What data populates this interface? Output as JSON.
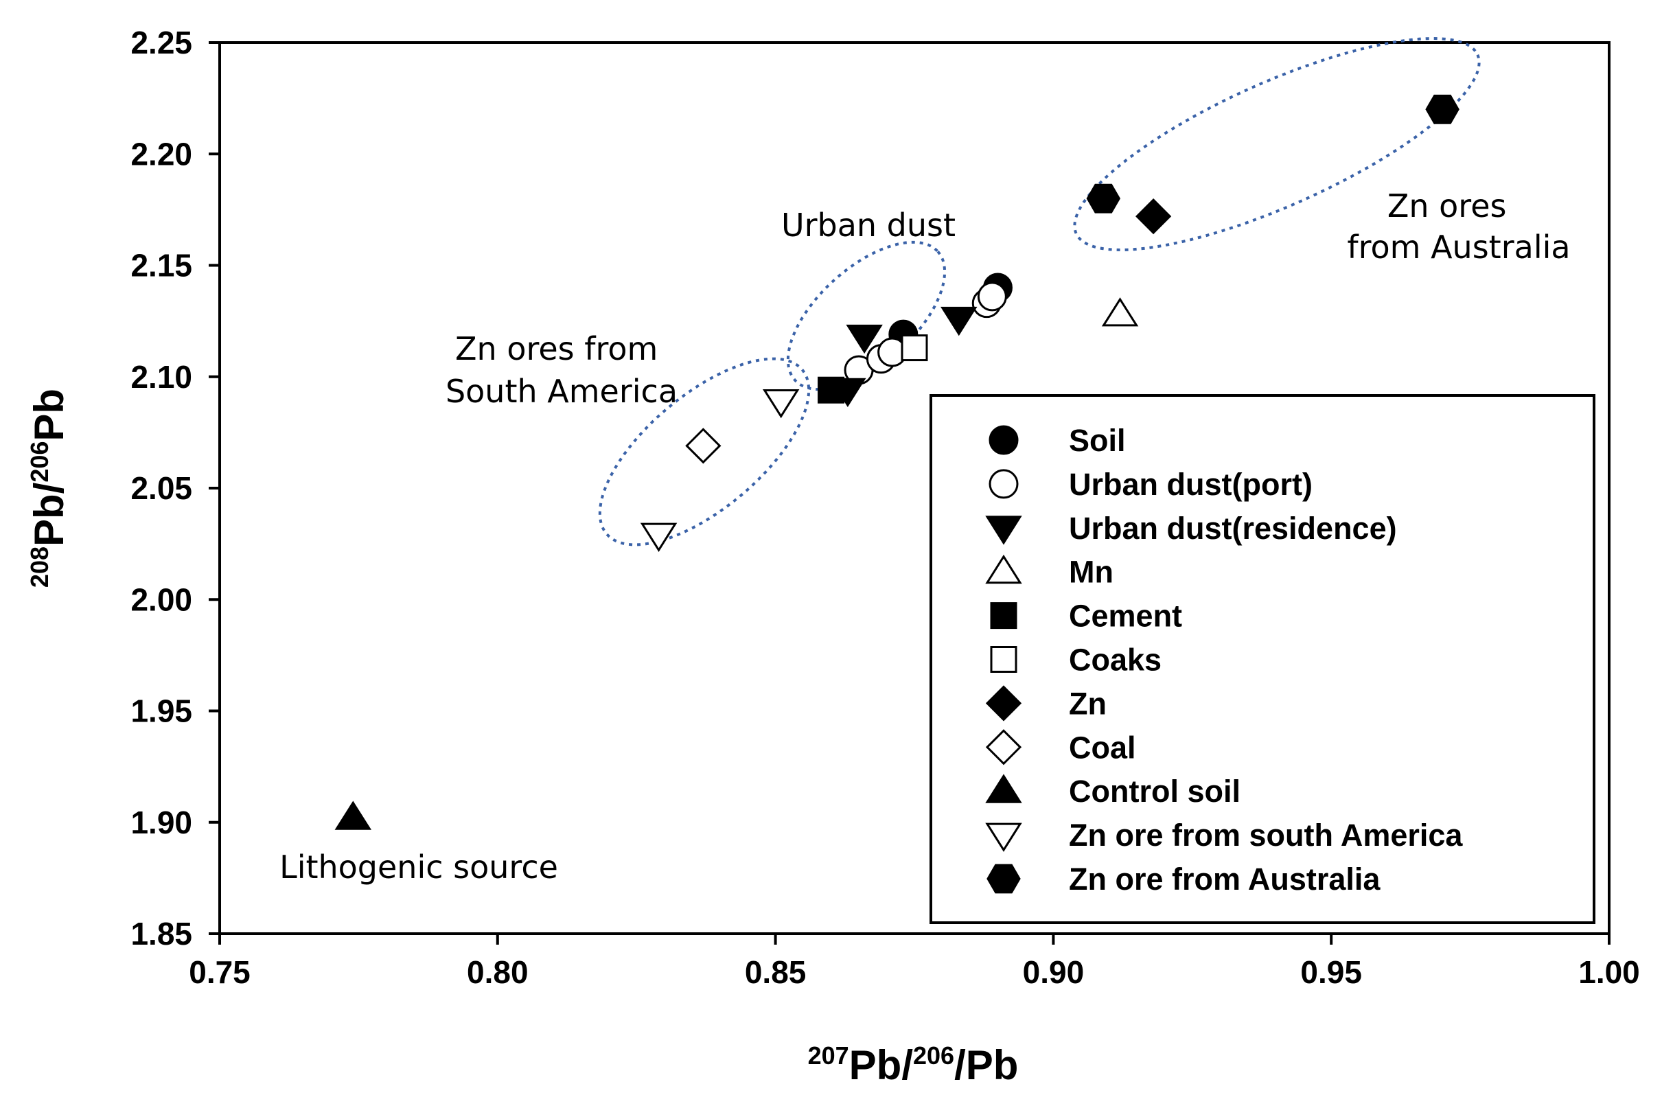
{
  "chart_data": {
    "type": "scatter",
    "title": "",
    "xlabel": {
      "sup1": "207",
      "base1": "Pb/",
      "sup2": "206",
      "base2": "/Pb"
    },
    "ylabel": {
      "sup1": "208",
      "base1": "Pb/",
      "sup2": "206",
      "base2": "Pb"
    },
    "xlim": [
      0.75,
      1.0
    ],
    "ylim": [
      1.85,
      2.25
    ],
    "x_ticks": [
      "0.75",
      "0.80",
      "0.85",
      "0.90",
      "0.95",
      "1.00"
    ],
    "y_ticks": [
      "1.85",
      "1.90",
      "1.95",
      "2.00",
      "2.05",
      "2.10",
      "2.15",
      "2.20",
      "2.25"
    ],
    "grid": false,
    "legend_position": "lower-right",
    "series": [
      {
        "name": "Soil",
        "marker": "circle",
        "fill": "#000000",
        "points": [
          [
            0.873,
            2.119
          ],
          [
            0.89,
            2.14
          ]
        ]
      },
      {
        "name": "Urban dust(port)",
        "marker": "circle",
        "fill": "#ffffff",
        "points": [
          [
            0.865,
            2.103
          ],
          [
            0.869,
            2.108
          ],
          [
            0.871,
            2.111
          ],
          [
            0.888,
            2.133
          ],
          [
            0.889,
            2.136
          ]
        ]
      },
      {
        "name": "Urban dust(residence)",
        "marker": "triangle-down",
        "fill": "#000000",
        "points": [
          [
            0.863,
            2.094
          ],
          [
            0.866,
            2.118
          ],
          [
            0.883,
            2.126
          ]
        ]
      },
      {
        "name": "Mn",
        "marker": "triangle-up",
        "fill": "#ffffff",
        "points": [
          [
            0.912,
            2.128
          ]
        ]
      },
      {
        "name": "Cement",
        "marker": "square",
        "fill": "#000000",
        "points": [
          [
            0.86,
            2.094
          ]
        ]
      },
      {
        "name": "Coaks",
        "marker": "square",
        "fill": "#ffffff",
        "points": [
          [
            0.875,
            2.113
          ]
        ]
      },
      {
        "name": "Zn",
        "marker": "diamond",
        "fill": "#000000",
        "points": [
          [
            0.918,
            2.172
          ]
        ]
      },
      {
        "name": "Coal",
        "marker": "diamond",
        "fill": "#ffffff",
        "points": [
          [
            0.837,
            2.069
          ]
        ]
      },
      {
        "name": "Control soil",
        "marker": "triangle-up",
        "fill": "#000000",
        "points": [
          [
            0.774,
            1.902
          ]
        ]
      },
      {
        "name": "Zn ore from south America",
        "marker": "triangle-down",
        "fill": "#ffffff",
        "points": [
          [
            0.829,
            2.029
          ],
          [
            0.851,
            2.089
          ]
        ]
      },
      {
        "name": "Zn ore from Australia",
        "marker": "hexagon",
        "fill": "#000000",
        "points": [
          [
            0.909,
            2.18
          ],
          [
            0.97,
            2.22
          ]
        ]
      }
    ],
    "annotations": [
      {
        "lines": [
          "Urban dust"
        ]
      },
      {
        "lines": [
          "Zn ores",
          "from Australia"
        ]
      },
      {
        "lines": [
          "Zn ores from",
          "South America"
        ]
      },
      {
        "lines": [
          "Lithogenic source"
        ]
      }
    ],
    "ellipse_color": "#3a62a8"
  }
}
